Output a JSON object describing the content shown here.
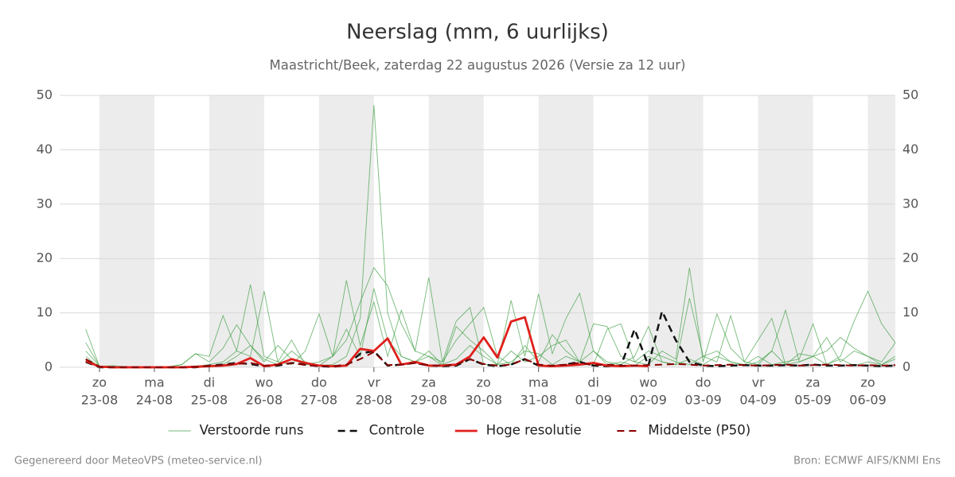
{
  "chart_data": {
    "type": "line",
    "title": "Neerslag (mm, 6 uurlijks)",
    "subtitle": "Maastricht/Beek, zaterdag 22 augustus 2026 (Versie za 12 uur)",
    "footer_left": "Gegenereerd door MeteoVPS (meteo-service.nl)",
    "footer_right": "Bron: ECMWF AIFS/KNMI Ens",
    "x_step_hours": 6,
    "x_start": -6,
    "xlim": [
      -17.4,
      348
    ],
    "xticks": [
      {
        "value": 0,
        "label": "zo",
        "date": "23-08"
      },
      {
        "value": 24,
        "label": "ma",
        "date": "24-08"
      },
      {
        "value": 48,
        "label": "di",
        "date": "25-08"
      },
      {
        "value": 72,
        "label": "wo",
        "date": "26-08"
      },
      {
        "value": 96,
        "label": "do",
        "date": "27-08"
      },
      {
        "value": 120,
        "label": "vr",
        "date": "28-08"
      },
      {
        "value": 144,
        "label": "za",
        "date": "29-08"
      },
      {
        "value": 168,
        "label": "zo",
        "date": "30-08"
      },
      {
        "value": 192,
        "label": "ma",
        "date": "31-08"
      },
      {
        "value": 216,
        "label": "di",
        "date": "01-09"
      },
      {
        "value": 240,
        "label": "wo",
        "date": "02-09"
      },
      {
        "value": 264,
        "label": "do",
        "date": "03-09"
      },
      {
        "value": 288,
        "label": "vr",
        "date": "04-09"
      },
      {
        "value": 312,
        "label": "za",
        "date": "05-09"
      },
      {
        "value": 336,
        "label": "zo",
        "date": "06-09"
      }
    ],
    "shade_alternate_days": true,
    "ylim": [
      0,
      50
    ],
    "yticks": [
      0,
      10,
      20,
      30,
      40,
      50
    ],
    "grid": true,
    "legend": "bottom",
    "ensemble": {
      "name": "Verstoorde runs",
      "color": "#3a9d3f",
      "runs": [
        [
          4.5,
          0.2,
          0,
          0,
          0,
          0,
          0,
          0,
          0,
          0.1,
          0.5,
          2.0,
          4.0,
          1.5,
          0.5,
          3.0,
          1.0,
          0.3,
          0.5,
          2.0,
          9.0,
          48.2,
          10.0,
          2.0,
          1.0,
          3.0,
          0.5,
          1.5,
          4.0,
          2.0,
          0.5,
          1.0,
          3.0,
          2.5,
          0.5,
          2.0,
          1.0,
          3.0,
          0.5,
          1.0,
          0.3,
          2.0,
          1.0,
          0.5,
          1.5,
          0.5,
          2.0,
          1.0,
          0.3,
          1.0,
          3.0,
          0.5,
          1.0,
          2.0,
          0.5,
          1.5,
          0.3,
          1.0,
          0.5,
          2.0
        ],
        [
          7.0,
          0.1,
          0,
          0,
          0,
          0,
          0,
          0,
          0.2,
          0.5,
          1.0,
          3.0,
          15.2,
          2.0,
          1.0,
          5.0,
          0.5,
          0.3,
          2.0,
          5.0,
          12.0,
          18.3,
          15.0,
          8.0,
          3.0,
          2.0,
          1.0,
          5.0,
          8.0,
          11.0,
          2.0,
          0.5,
          4.0,
          1.0,
          6.0,
          3.0,
          1.0,
          8.0,
          7.5,
          2.0,
          1.0,
          3.0,
          2.0,
          1.0,
          0.5,
          2.0,
          1.0,
          9.5,
          1.0,
          0.5,
          3.0,
          10.5,
          1.0,
          2.0,
          5.5,
          1.0,
          3.0,
          2.0,
          1.0,
          4.5
        ],
        [
          3.0,
          0.2,
          0.3,
          0.1,
          0,
          0,
          0,
          0.5,
          2.5,
          2.0,
          9.5,
          3.0,
          2.0,
          14.0,
          1.0,
          0.5,
          3.0,
          9.8,
          2.0,
          16.0,
          4.0,
          12.0,
          2.0,
          10.5,
          3.0,
          16.5,
          1.0,
          8.5,
          11.0,
          0.5,
          0.5,
          12.3,
          2.0,
          13.5,
          2.5,
          9.0,
          13.6,
          3.0,
          1.0,
          0.5,
          2.0,
          7.5,
          1.0,
          0.5,
          12.7,
          2.0,
          3.0,
          1.0,
          0.5,
          2.0,
          0.5,
          1.0,
          1.5,
          8.0,
          0.5,
          2.0,
          8.5,
          14.0,
          8.0,
          4.5
        ],
        [
          2.0,
          0,
          0,
          0,
          0,
          0,
          0.1,
          0.5,
          2.5,
          1.0,
          3.5,
          7.8,
          4.0,
          1.0,
          4.0,
          1.5,
          0.5,
          1.0,
          2.0,
          7.0,
          2.0,
          14.5,
          5.0,
          2.0,
          1.0,
          2.0,
          0.3,
          7.5,
          5.0,
          3.0,
          0.5,
          3.0,
          1.0,
          2.0,
          4.0,
          5.0,
          1.0,
          0.5,
          7.0,
          8.0,
          1.0,
          0.5,
          3.0,
          1.5,
          18.3,
          1.0,
          9.8,
          3.5,
          1.0,
          5.0,
          9.0,
          0.5,
          2.5,
          2.0,
          3.0,
          5.5,
          3.5,
          2.0,
          0.5,
          1.5
        ]
      ]
    },
    "series": [
      {
        "name": "Controle",
        "color": "#111111",
        "dash": true,
        "width": 2.5,
        "values": [
          1.0,
          0,
          0,
          0,
          0,
          0,
          0,
          0,
          0,
          0.3,
          0.5,
          0.8,
          0.6,
          0.2,
          0.3,
          0.8,
          0.5,
          0.2,
          0.1,
          0.3,
          2.5,
          3.0,
          0.3,
          0.5,
          0.8,
          0.3,
          0.2,
          0.3,
          1.5,
          0.5,
          0.2,
          0.5,
          1.5,
          0.3,
          0.2,
          0.5,
          1.0,
          0.3,
          0.2,
          0.3,
          7.0,
          0.3,
          10.3,
          5.0,
          1.0,
          0.3,
          0.2,
          0.3,
          0.4,
          0.3,
          0.3,
          0.4,
          0.3,
          0.5,
          0.3,
          0.3,
          0.4,
          0.3,
          0.2,
          0.3
        ]
      },
      {
        "name": "Hoge resolutie",
        "color": "#e0201b",
        "dash": false,
        "width": 2.8,
        "values": [
          1.2,
          0.1,
          0,
          0,
          0,
          0,
          0,
          0,
          0.1,
          0.2,
          0.3,
          0.6,
          1.7,
          0.2,
          0.5,
          1.5,
          0.8,
          0.3,
          0.2,
          0.3,
          3.4,
          3.0,
          5.3,
          0.5,
          1.0,
          0.3,
          0.3,
          0.5,
          2.0,
          5.5,
          1.8,
          8.4,
          9.2,
          0.3,
          0.2,
          0.3,
          0.5,
          0.8,
          0.3,
          0.2,
          0.3,
          0.2,
          null,
          null,
          null,
          null,
          null,
          null,
          null,
          null,
          null,
          null,
          null,
          null,
          null,
          null,
          null,
          null,
          null,
          null
        ]
      },
      {
        "name": "Middelste (P50)",
        "color": "#8b0000",
        "dash": true,
        "width": 2,
        "values": [
          1.5,
          0.1,
          0,
          0,
          0,
          0,
          0,
          0,
          0.1,
          0.2,
          0.4,
          0.6,
          0.8,
          0.3,
          0.5,
          0.8,
          0.4,
          0.2,
          0.2,
          0.5,
          1.5,
          2.8,
          0.4,
          0.5,
          0.8,
          0.4,
          0.3,
          0.5,
          1.5,
          0.6,
          0.3,
          0.5,
          1.5,
          0.5,
          0.3,
          0.5,
          0.8,
          0.4,
          0.5,
          0.3,
          0.3,
          0.4,
          0.5,
          0.6,
          0.5,
          0.3,
          0.4,
          0.5,
          0.4,
          0.3,
          0.4,
          0.5,
          0.3,
          0.4,
          0.5,
          0.4,
          0.3,
          0.4,
          0.3,
          0.4
        ]
      }
    ]
  }
}
